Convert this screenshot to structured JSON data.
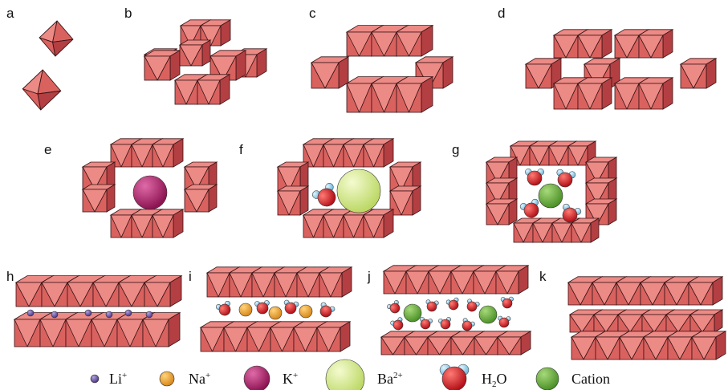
{
  "panels": [
    "a",
    "b",
    "c",
    "d",
    "e",
    "f",
    "g",
    "h",
    "i",
    "j",
    "k"
  ],
  "legend": [
    {
      "base": "Li",
      "sup": "+",
      "icon": "li-ion-icon",
      "color": "#6a4fa3"
    },
    {
      "base": "Na",
      "sup": "+",
      "icon": "na-ion-icon",
      "color": "#f0a634"
    },
    {
      "base": "K",
      "sup": "+",
      "icon": "k-ion-icon",
      "color": "#a51f66"
    },
    {
      "base": "Ba",
      "sup": "2+",
      "icon": "ba-ion-icon",
      "color": "#d6ec8a"
    },
    {
      "base": "H",
      "sub": "2",
      "tail": "O",
      "icon": "water-molecule-icon",
      "color": "#d7191c"
    },
    {
      "base": "Cation",
      "icon": "cation-icon",
      "color": "#6cb33f"
    }
  ],
  "colors": {
    "octa_light": "#ec8a86",
    "octa_mid": "#d9625f",
    "octa_dark": "#b33f42",
    "edge": "#3a1416",
    "water_h": "#9fd3ef"
  }
}
